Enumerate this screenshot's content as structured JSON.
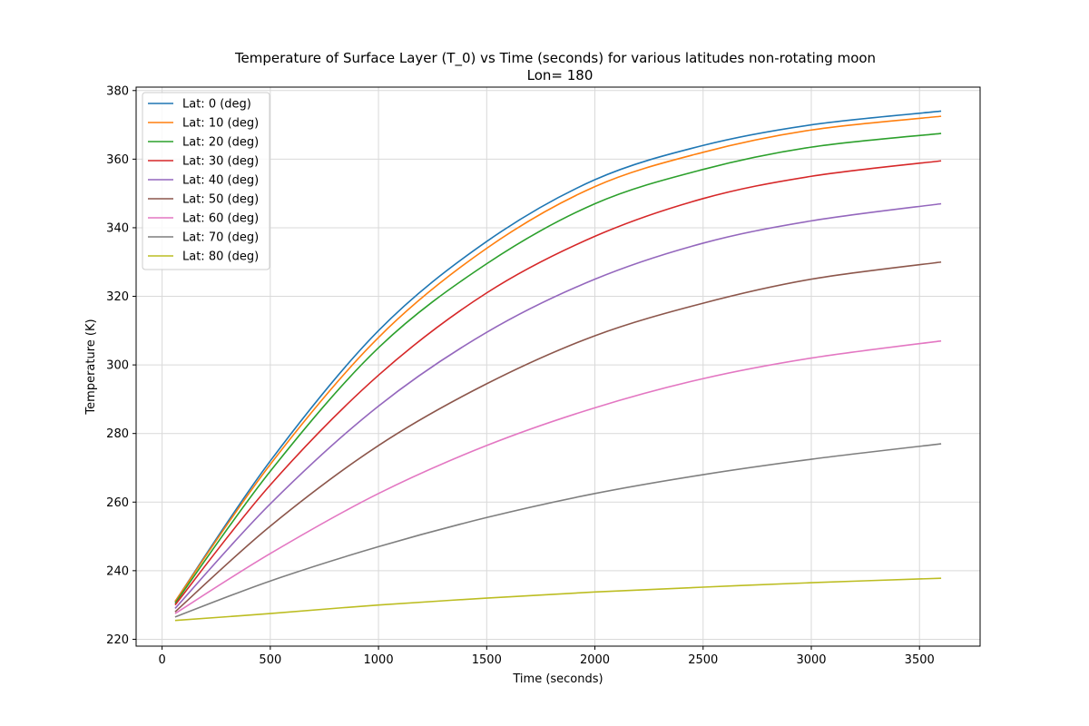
{
  "chart_data": {
    "type": "line",
    "title": "Temperature of Surface Layer (T_0) vs Time (seconds) for various latitudes non-rotating moon",
    "subtitle": "Lon= 180",
    "xlabel": "Time (seconds)",
    "ylabel": "Temperature (K)",
    "xlim": [
      -120,
      3780
    ],
    "ylim": [
      218,
      381
    ],
    "xticks": [
      0,
      500,
      1000,
      1500,
      2000,
      2500,
      3000,
      3500
    ],
    "yticks": [
      220,
      240,
      260,
      280,
      300,
      320,
      340,
      360,
      380
    ],
    "grid": true,
    "legend_position": "upper-left",
    "x": [
      60,
      500,
      1000,
      1500,
      2000,
      2500,
      3000,
      3600
    ],
    "series": [
      {
        "name": "Lat: 0 (deg)",
        "color": "#1f77b4",
        "values": [
          231,
          272,
          310,
          336,
          354,
          364,
          370,
          374
        ]
      },
      {
        "name": "Lat: 10 (deg)",
        "color": "#ff7f0e",
        "values": [
          231,
          271,
          308,
          334,
          352,
          362,
          368.5,
          372.5
        ]
      },
      {
        "name": "Lat: 20 (deg)",
        "color": "#2ca02c",
        "values": [
          230.5,
          269,
          305,
          329.5,
          347,
          357,
          363.5,
          367.5
        ]
      },
      {
        "name": "Lat: 30 (deg)",
        "color": "#d62728",
        "values": [
          230,
          265,
          297,
          321,
          337.5,
          348.5,
          355,
          359.5
        ]
      },
      {
        "name": "Lat: 40 (deg)",
        "color": "#9467bd",
        "values": [
          229,
          259.5,
          288,
          309.5,
          325,
          335.5,
          342,
          347
        ]
      },
      {
        "name": "Lat: 50 (deg)",
        "color": "#8c564b",
        "values": [
          228,
          253,
          276.5,
          294.5,
          308.5,
          318,
          325,
          330
        ]
      },
      {
        "name": "Lat: 60 (deg)",
        "color": "#e377c2",
        "values": [
          227.5,
          245,
          262.5,
          276.5,
          287.5,
          296,
          302,
          307
        ]
      },
      {
        "name": "Lat: 70 (deg)",
        "color": "#7f7f7f",
        "values": [
          226.5,
          237,
          247,
          255.5,
          262.5,
          268,
          272.5,
          277
        ]
      },
      {
        "name": "Lat: 80 (deg)",
        "color": "#bcbd22",
        "values": [
          225.5,
          227.5,
          230,
          232,
          233.8,
          235.2,
          236.5,
          237.8
        ]
      }
    ]
  }
}
